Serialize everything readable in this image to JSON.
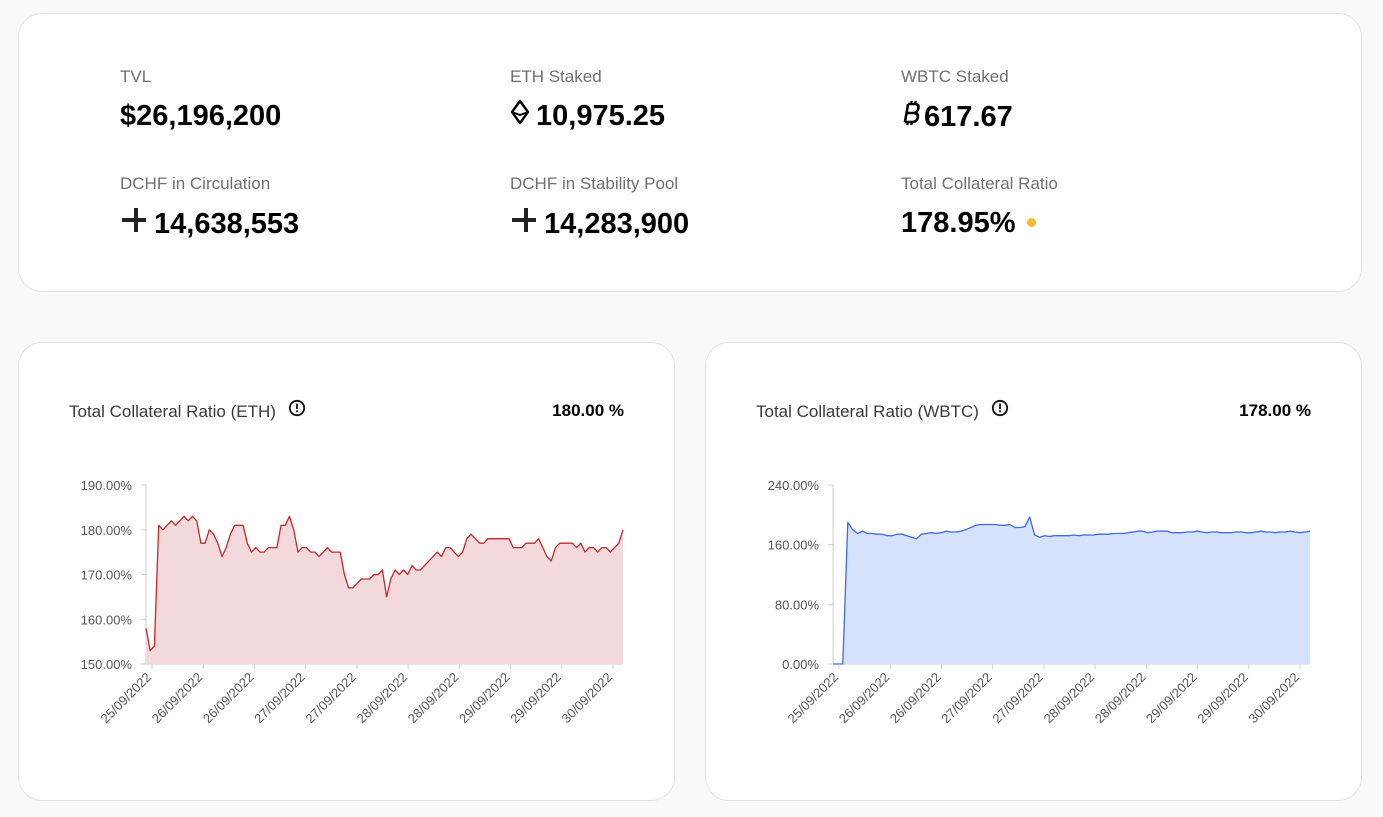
{
  "stats": {
    "tvl": {
      "label": "TVL",
      "value": "$26,196,200"
    },
    "eth_staked": {
      "label": "ETH Staked",
      "value": "10,975.25",
      "icon": "ethereum-icon"
    },
    "wbtc_staked": {
      "label": "WBTC Staked",
      "value": "617.67",
      "icon": "bitcoin-icon"
    },
    "dchf_circulation": {
      "label": "DCHF in Circulation",
      "value": "14,638,553",
      "icon": "dchf-icon"
    },
    "dchf_stability_pool": {
      "label": "DCHF in Stability Pool",
      "value": "14,283,900",
      "icon": "dchf-icon"
    },
    "total_collateral_ratio": {
      "label": "Total Collateral Ratio",
      "value": "178.95%",
      "status_color": "#f5b82e"
    }
  },
  "charts": {
    "eth": {
      "title": "Total Collateral Ratio (ETH)",
      "value": "180.00 %"
    },
    "wbtc": {
      "title": "Total Collateral Ratio (WBTC)",
      "value": "178.00 %"
    }
  },
  "chart_data": [
    {
      "type": "area",
      "title": "Total Collateral Ratio (ETH)",
      "color": "#c62828",
      "fill": "#f4d9dc",
      "ylim": [
        150,
        190
      ],
      "yticks": [
        "150.00%",
        "160.00%",
        "170.00%",
        "180.00%",
        "190.00%"
      ],
      "ytick_values": [
        150,
        160,
        170,
        180,
        190
      ],
      "xticks": [
        "25/09/2022",
        "26/09/2022",
        "26/09/2022",
        "27/09/2022",
        "27/09/2022",
        "28/09/2022",
        "28/09/2022",
        "29/09/2022",
        "29/09/2022",
        "30/09/2022"
      ],
      "values": [
        158,
        153,
        154,
        181,
        180,
        181,
        182,
        181,
        182,
        183,
        182,
        183,
        182,
        177,
        177,
        180,
        179,
        177,
        174,
        176,
        179,
        181,
        181,
        181,
        177,
        175,
        176,
        175,
        175,
        176,
        176,
        176,
        181,
        181,
        183,
        180,
        175,
        176,
        176,
        175,
        175,
        174,
        175,
        176,
        175,
        175,
        175,
        170,
        167,
        167,
        168,
        169,
        169,
        169,
        170,
        170,
        171,
        165,
        169,
        171,
        170,
        171,
        170,
        172,
        171,
        171,
        172,
        173,
        174,
        175,
        174,
        176,
        176,
        175,
        174,
        175,
        178,
        179,
        178,
        177,
        177,
        178,
        178,
        178,
        178,
        178,
        178,
        176,
        176,
        176,
        177,
        177,
        177,
        178,
        176,
        174,
        173,
        176,
        177,
        177,
        177,
        177,
        176,
        177,
        175,
        176,
        176,
        175,
        176,
        176,
        175,
        176,
        177,
        180
      ]
    },
    {
      "type": "area",
      "title": "Total Collateral Ratio (WBTC)",
      "color": "#4169e1",
      "fill": "#d6e2fb",
      "ylim": [
        0,
        240
      ],
      "yticks": [
        "0.00%",
        "80.00%",
        "160.00%",
        "240.00%"
      ],
      "ytick_values": [
        0,
        80,
        160,
        240
      ],
      "xticks": [
        "25/09/2022",
        "26/09/2022",
        "26/09/2022",
        "27/09/2022",
        "27/09/2022",
        "28/09/2022",
        "28/09/2022",
        "29/09/2022",
        "29/09/2022",
        "30/09/2022"
      ],
      "values": [
        0,
        0,
        0,
        190,
        180,
        175,
        178,
        175,
        175,
        174,
        174,
        172,
        172,
        174,
        174,
        172,
        170,
        168,
        174,
        175,
        176,
        175,
        176,
        178,
        177,
        177,
        178,
        180,
        183,
        186,
        187,
        187,
        187,
        187,
        186,
        186,
        187,
        183,
        183,
        184,
        197,
        173,
        170,
        172,
        171,
        172,
        172,
        172,
        172,
        173,
        172,
        173,
        173,
        173,
        174,
        174,
        174,
        175,
        175,
        175,
        176,
        177,
        178,
        178,
        176,
        177,
        178,
        178,
        178,
        176,
        176,
        176,
        177,
        177,
        178,
        177,
        176,
        177,
        177,
        176,
        176,
        176,
        177,
        177,
        176,
        176,
        177,
        178,
        177,
        177,
        176,
        177,
        177,
        178,
        177,
        176,
        177,
        178
      ]
    }
  ]
}
